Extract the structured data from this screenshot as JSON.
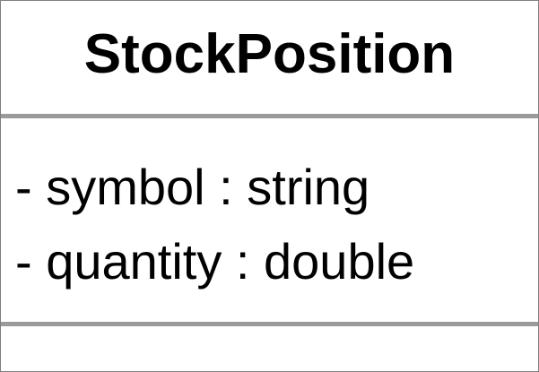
{
  "class_box": {
    "name": "StockPosition",
    "attributes": [
      "- symbol : string",
      "- quantity : double"
    ],
    "operations": []
  },
  "colors": {
    "border": "#808080",
    "divider": "#9a9a9a",
    "text": "#000000",
    "background": "#ffffff"
  }
}
